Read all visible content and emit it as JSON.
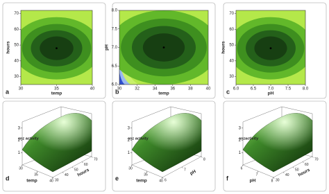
{
  "chart_data": [
    {
      "type": "contour",
      "panel": "a",
      "xlabel": "temp",
      "ylabel": "hours",
      "x": [
        35
      ],
      "y": [
        48
      ],
      "xlim": [
        30,
        40
      ],
      "ylim": [
        25,
        72
      ],
      "xticks": [
        30,
        35,
        40
      ],
      "yticks": [
        30,
        40,
        50,
        60,
        70
      ]
    },
    {
      "type": "contour",
      "panel": "b",
      "xlabel": "temp",
      "ylabel": "pH",
      "x": [
        35
      ],
      "y": [
        7.0
      ],
      "xlim": [
        30,
        40
      ],
      "ylim": [
        6.0,
        8.0
      ],
      "xticks": [
        30,
        32,
        34,
        36,
        38,
        40
      ],
      "yticks": [
        {
          "value": 6.0,
          "label": "6.0"
        },
        {
          "value": 6.5,
          "label": "6.5"
        },
        {
          "value": 7.0,
          "label": "7.0"
        },
        {
          "value": 7.5,
          "label": "7.5"
        },
        {
          "value": 8.0,
          "label": "8.0"
        }
      ]
    },
    {
      "type": "contour",
      "panel": "c",
      "xlabel": "pH",
      "ylabel": "hours",
      "x": [
        7.0
      ],
      "y": [
        48
      ],
      "xlim": [
        6.0,
        8.0
      ],
      "ylim": [
        25,
        72
      ],
      "xticks": [
        {
          "value": 6.0,
          "label": "6.0"
        },
        {
          "value": 6.5,
          "label": "6.5"
        },
        {
          "value": 7.0,
          "label": "7.0"
        },
        {
          "value": 7.5,
          "label": "7.5"
        },
        {
          "value": 8.0,
          "label": "8.0"
        }
      ],
      "yticks": [
        30,
        40,
        50,
        60,
        70
      ]
    },
    {
      "type": "surface",
      "panel": "d",
      "zlabel": "enz activity",
      "xlabel": "temp",
      "ylabel": "hours",
      "zlim": [
        0,
        3.5
      ],
      "zticks": [
        1,
        2,
        3
      ],
      "xlim": [
        30,
        40
      ],
      "xticks": [
        30,
        35,
        40
      ],
      "ylim": [
        30,
        70
      ],
      "yticks": [
        30,
        40,
        50,
        60,
        70
      ]
    },
    {
      "type": "surface",
      "panel": "e",
      "zlabel": "enz activity",
      "xlabel": "temp",
      "ylabel": "pH",
      "zlim": [
        0,
        3.5
      ],
      "zticks": [
        1,
        2,
        3
      ],
      "xlim": [
        30,
        40
      ],
      "xticks": [
        30,
        35,
        40
      ],
      "ylim": [
        6,
        8
      ],
      "yticks": [
        6,
        7,
        8
      ]
    },
    {
      "type": "surface",
      "panel": "f",
      "zlabel": "enzactivity",
      "xlabel": "pH",
      "ylabel": "hours",
      "zlim": [
        0,
        3.5
      ],
      "zticks": [
        1,
        2,
        3
      ],
      "xlim": [
        6,
        8
      ],
      "xticks": [
        6,
        7,
        8
      ],
      "ylim": [
        30,
        70
      ],
      "yticks": [
        30,
        40,
        50,
        60,
        70
      ]
    }
  ]
}
